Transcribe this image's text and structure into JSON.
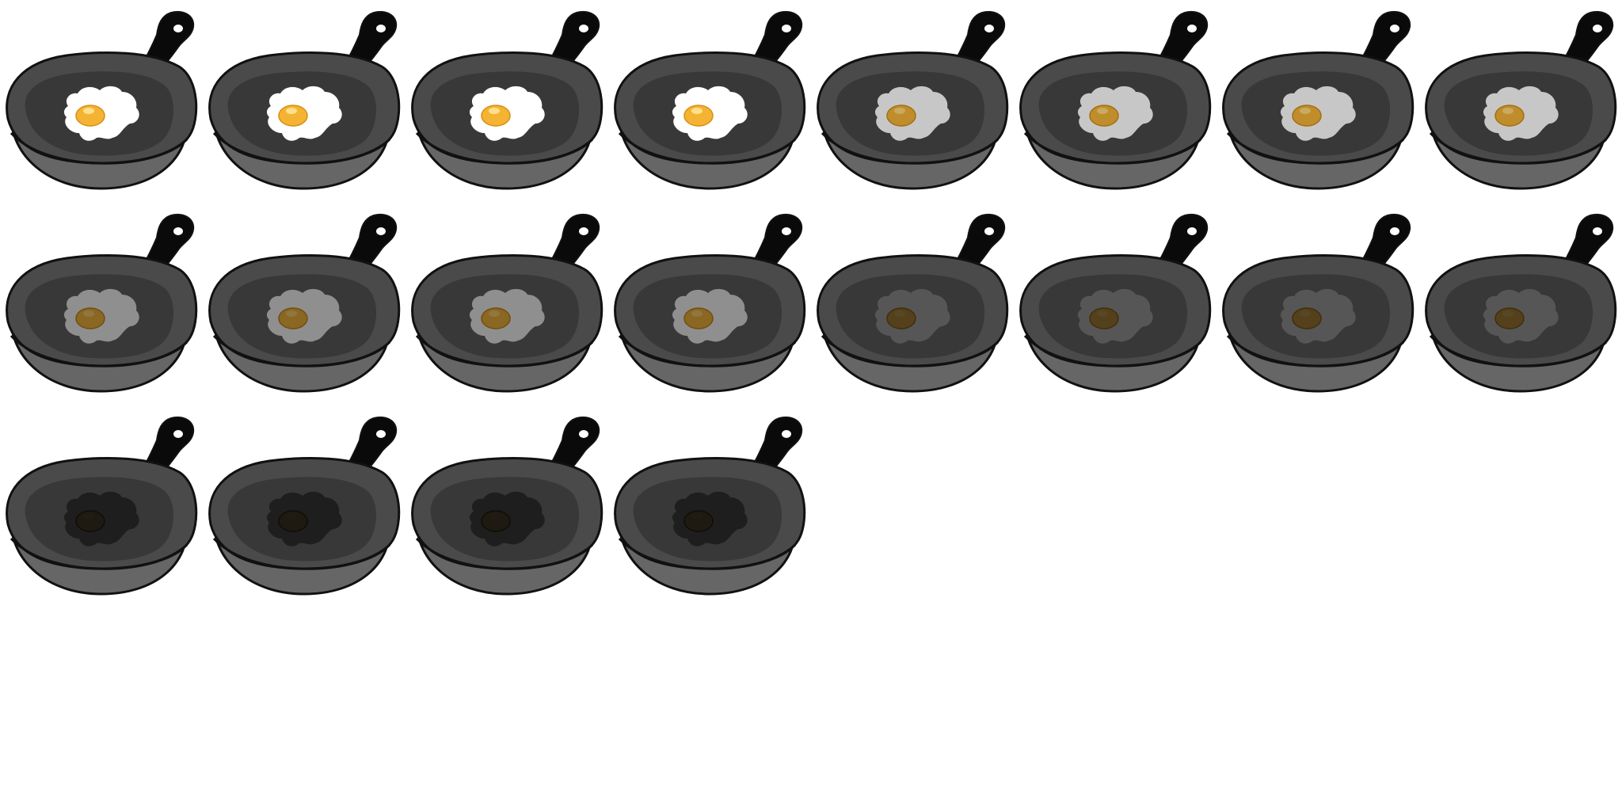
{
  "sprite_sheet": {
    "columns": 8,
    "frames": [
      {
        "egg_state": "raw",
        "fade": 0
      },
      {
        "egg_state": "raw",
        "fade": 0
      },
      {
        "egg_state": "raw",
        "fade": 0
      },
      {
        "egg_state": "raw",
        "fade": 0
      },
      {
        "egg_state": "fading",
        "fade": 0.25
      },
      {
        "egg_state": "fading",
        "fade": 0.25
      },
      {
        "egg_state": "fading",
        "fade": 0.25
      },
      {
        "egg_state": "fading",
        "fade": 0.25
      },
      {
        "egg_state": "fading",
        "fade": 0.5
      },
      {
        "egg_state": "fading",
        "fade": 0.5
      },
      {
        "egg_state": "fading",
        "fade": 0.5
      },
      {
        "egg_state": "fading",
        "fade": 0.5
      },
      {
        "egg_state": "fading",
        "fade": 0.75
      },
      {
        "egg_state": "fading",
        "fade": 0.75
      },
      {
        "egg_state": "fading",
        "fade": 0.75
      },
      {
        "egg_state": "fading",
        "fade": 0.75
      },
      {
        "egg_state": "burnt",
        "fade": 1
      },
      {
        "egg_state": "burnt",
        "fade": 1
      },
      {
        "egg_state": "burnt",
        "fade": 1
      },
      {
        "egg_state": "burnt",
        "fade": 1
      }
    ]
  },
  "colors": {
    "background": "#ffffff",
    "outline": "#111111",
    "handle": "#0a0a0a",
    "pan_outer": "#4a4a4a",
    "pan_inner": "#383838",
    "pan_side": "#5e5e5e",
    "pan_base": "#666666",
    "egg_white_raw": "#ffffff",
    "egg_white_burnt": "#1e1e1e",
    "yolk_raw": "#f5b333",
    "yolk_burnt": "#1e1a12",
    "yolk_highlight": "#ffe08a"
  }
}
